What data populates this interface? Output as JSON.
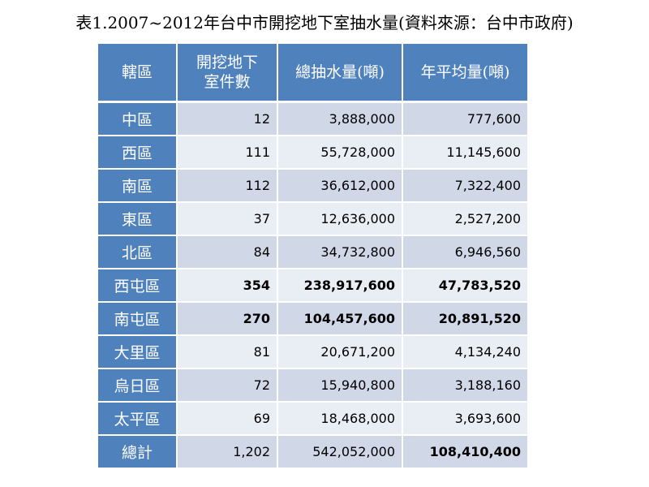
{
  "caption": "表1.2007~2012年台中市開挖地下室抽水量(資料來源：台中市政府)",
  "table": {
    "headers": [
      "轄區",
      "開挖地下室件數",
      "總抽水量(噸)",
      "年平均量(噸)"
    ],
    "rows": [
      {
        "district": "中區",
        "count": "12",
        "total": "3,888,000",
        "annual": "777,600"
      },
      {
        "district": "西區",
        "count": "111",
        "total": "55,728,000",
        "annual": "11,145,600"
      },
      {
        "district": "南區",
        "count": "112",
        "total": "36,612,000",
        "annual": "7,322,400"
      },
      {
        "district": "東區",
        "count": "37",
        "total": "12,636,000",
        "annual": "2,527,200"
      },
      {
        "district": "北區",
        "count": "84",
        "total": "34,732,800",
        "annual": "6,946,560"
      },
      {
        "district": "西屯區",
        "count": "354",
        "total": "238,917,600",
        "annual": "47,783,520"
      },
      {
        "district": "南屯區",
        "count": "270",
        "total": "104,457,600",
        "annual": "20,891,520"
      },
      {
        "district": "大里區",
        "count": "81",
        "total": "20,671,200",
        "annual": "4,134,240"
      },
      {
        "district": "烏日區",
        "count": "72",
        "total": "15,940,800",
        "annual": "3,188,160"
      },
      {
        "district": "太平區",
        "count": "69",
        "total": "18,468,000",
        "annual": "3,693,600"
      },
      {
        "district": "總計",
        "count": "1,202",
        "total": "542,052,000",
        "annual": "108,410,400"
      }
    ]
  },
  "colors": {
    "header_bg": "#4f81bd",
    "row_odd_bg": "#d0d8e8",
    "row_even_bg": "#e9edf4",
    "header_text": "#ffffff"
  }
}
